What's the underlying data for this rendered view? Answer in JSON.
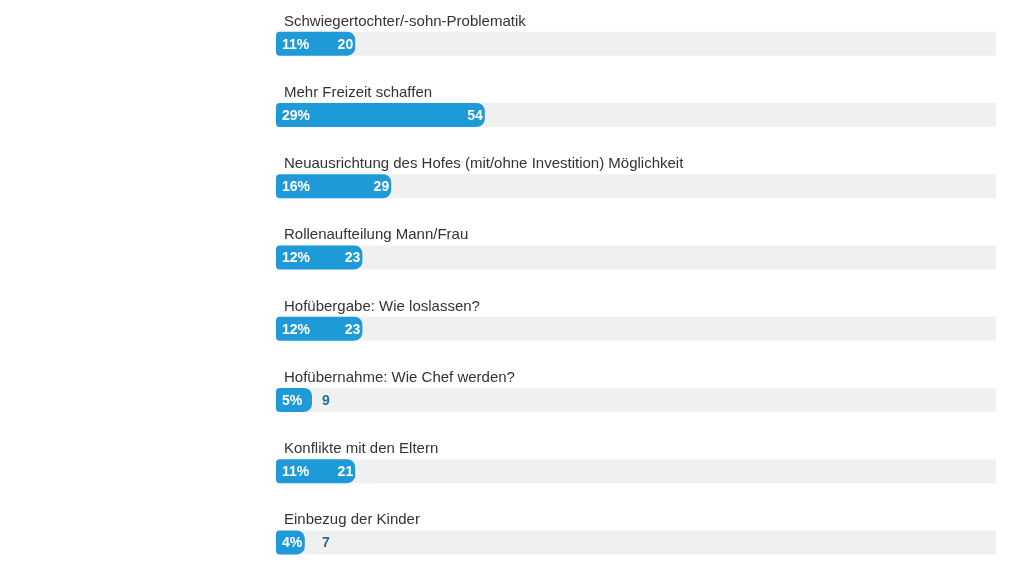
{
  "chart_data": {
    "type": "bar",
    "orientation": "horizontal",
    "categories": [
      "Schwiegertochter/-sohn-Problematik",
      "Mehr Freizeit schaffen",
      "Neuausrichtung des Hofes (mit/ohne Investition) Möglichkeit",
      "Rollenaufteilung Mann/Frau",
      "Hofübergabe: Wie loslassen?",
      "Hofübernahme: Wie Chef werden?",
      "Konflikte mit den Eltern",
      "Einbezug der Kinder"
    ],
    "values": [
      11,
      29,
      16,
      12,
      12,
      5,
      11,
      4
    ],
    "value_labels": [
      "11%",
      "29%",
      "16%",
      "12%",
      "12%",
      "5%",
      "11%",
      "4%"
    ],
    "annotations": [
      "20",
      "54",
      "29",
      "23",
      "23",
      "9",
      "21",
      "7"
    ],
    "color": "#1e9ad8",
    "tick_labels": "y"
  }
}
